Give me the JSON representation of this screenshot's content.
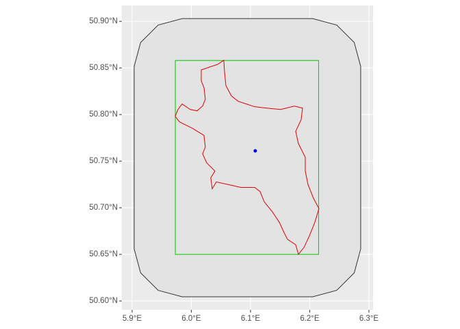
{
  "chart_data": {
    "type": "map",
    "xlim": [
      5.8827,
      6.307
    ],
    "ylim": [
      50.5905,
      50.917
    ],
    "xticks": [
      {
        "value": 5.9,
        "label": "5.9°E"
      },
      {
        "value": 6.0,
        "label": "6.0°E"
      },
      {
        "value": 6.1,
        "label": "6.1°E"
      },
      {
        "value": 6.2,
        "label": "6.2°E"
      },
      {
        "value": 6.3,
        "label": "6.3°E"
      }
    ],
    "yticks": [
      {
        "value": 50.6,
        "label": "50.60°N"
      },
      {
        "value": 50.65,
        "label": "50.65°N"
      },
      {
        "value": 50.7,
        "label": "50.70°N"
      },
      {
        "value": 50.75,
        "label": "50.75°N"
      },
      {
        "value": 50.8,
        "label": "50.80°N"
      },
      {
        "value": 50.85,
        "label": "50.85°N"
      },
      {
        "value": 50.9,
        "label": "50.90°N"
      }
    ],
    "grid": true,
    "polygons": [
      {
        "color": "#333333",
        "fill": "#e3e3e3",
        "x": [
          6.2861,
          6.2752,
          6.2456,
          6.2051,
          5.9845,
          5.944,
          5.9144,
          5.9035,
          5.9035,
          5.9144,
          5.944,
          5.9845,
          6.2051,
          6.2456,
          6.2752,
          6.2861
        ],
        "y": [
          50.8516,
          50.8773,
          50.896,
          50.9029,
          50.9029,
          50.896,
          50.8773,
          50.8516,
          50.6558,
          50.6301,
          50.6114,
          50.6045,
          50.6045,
          50.6114,
          50.6301,
          50.6558
        ]
      },
      {
        "color": "#00cc00",
        "fill": "none",
        "x": [
          5.973,
          6.215,
          6.215,
          5.973
        ],
        "y": [
          50.858,
          50.858,
          50.65,
          50.65
        ]
      },
      {
        "color": "#e00000",
        "fill": "none",
        "x": [
          6.0549,
          6.0445,
          6.0306,
          6.0168,
          6.0168,
          6.0214,
          6.0237,
          6.0191,
          6.0098,
          5.9983,
          5.9844,
          5.9775,
          5.9728,
          5.9798,
          6.0029,
          6.0214,
          6.0237,
          6.0191,
          6.026,
          6.0399,
          6.0329,
          6.0353,
          6.0422,
          6.063,
          6.0838,
          6.1069,
          6.1162,
          6.1231,
          6.137,
          6.1486,
          6.1555,
          6.1624,
          6.1763,
          6.1809,
          6.1902,
          6.1994,
          6.2087,
          6.2156,
          6.2064,
          6.1971,
          6.1925,
          6.1925,
          6.1809,
          6.1763,
          6.1855,
          6.1879,
          6.174,
          6.1509,
          6.1277,
          6.1069,
          6.0931,
          6.0792,
          6.0676,
          6.0584,
          6.0561
        ],
        "y": [
          50.8582,
          50.8538,
          50.8509,
          50.8479,
          50.8362,
          50.8289,
          50.8164,
          50.8091,
          50.804,
          50.8054,
          50.8113,
          50.8054,
          50.7981,
          50.7922,
          50.7849,
          50.7776,
          50.7651,
          50.7578,
          50.7482,
          50.7394,
          50.7321,
          50.7204,
          50.7277,
          50.7248,
          50.7218,
          50.7218,
          50.7174,
          50.7065,
          50.6955,
          50.6845,
          50.6749,
          50.6661,
          50.6603,
          50.65,
          50.6573,
          50.6698,
          50.6845,
          50.6991,
          50.7101,
          50.7248,
          50.7394,
          50.7541,
          50.7688,
          50.782,
          50.7944,
          50.8069,
          50.8091,
          50.8054,
          50.8069,
          50.8084,
          50.8113,
          50.8142,
          50.8201,
          50.8311,
          50.8457
        ]
      }
    ],
    "points": {
      "color": "#0000ee",
      "x": [
        6.108
      ],
      "y": [
        50.761
      ]
    }
  }
}
